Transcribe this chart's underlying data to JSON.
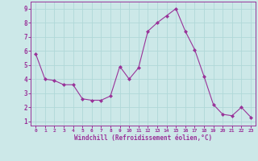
{
  "x": [
    0,
    1,
    2,
    3,
    4,
    5,
    6,
    7,
    8,
    9,
    10,
    11,
    12,
    13,
    14,
    15,
    16,
    17,
    18,
    19,
    20,
    21,
    22,
    23
  ],
  "y": [
    5.8,
    4.0,
    3.9,
    3.6,
    3.6,
    2.6,
    2.5,
    2.5,
    2.8,
    4.9,
    4.0,
    4.8,
    7.4,
    8.0,
    8.5,
    9.0,
    7.4,
    6.1,
    4.2,
    2.2,
    1.5,
    1.4,
    2.0,
    1.3
  ],
  "line_color": "#993399",
  "marker_color": "#993399",
  "bg_color": "#cce8e8",
  "grid_color": "#b0d8d8",
  "xlabel": "Windchill (Refroidissement éolien,°C)",
  "tick_color": "#993399",
  "ylim": [
    0.7,
    9.5
  ],
  "xlim": [
    -0.5,
    23.5
  ],
  "yticks": [
    1,
    2,
    3,
    4,
    5,
    6,
    7,
    8,
    9
  ],
  "xtick_labels": [
    "0",
    "1",
    "2",
    "3",
    "4",
    "5",
    "6",
    "7",
    "8",
    "9",
    "10",
    "11",
    "12",
    "13",
    "14",
    "15",
    "16",
    "17",
    "18",
    "19",
    "20",
    "21",
    "22",
    "23"
  ],
  "figsize": [
    3.2,
    2.0
  ],
  "dpi": 100
}
